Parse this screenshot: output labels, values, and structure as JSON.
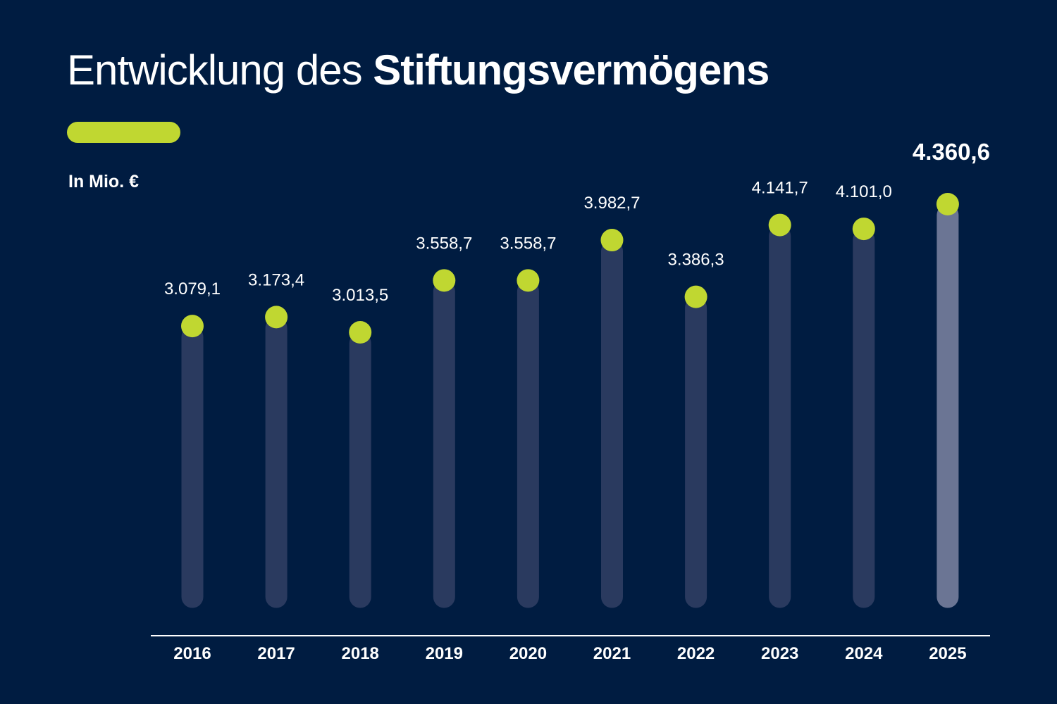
{
  "header": {
    "title_light": "Entwicklung des ",
    "title_bold": "Stiftungsvermögens",
    "unit": "In Mio. €"
  },
  "colors": {
    "background": "#001c41",
    "accent": "#c0d731",
    "bar": "#2a3a5f",
    "bar_highlight": "#6b7594",
    "axis": "#ffffff",
    "text": "#ffffff"
  },
  "chart_data": {
    "type": "bar",
    "categories": [
      "2016",
      "2017",
      "2018",
      "2019",
      "2020",
      "2021",
      "2022",
      "2023",
      "2024",
      "2025"
    ],
    "values": [
      3079.1,
      3173.4,
      3013.5,
      3558.7,
      3558.7,
      3982.7,
      3386.3,
      4141.7,
      4101.0,
      4360.6
    ],
    "data_labels": [
      "3.079,1",
      "3.173,4",
      "3.013,5",
      "3.558,7",
      "3.558,7",
      "3.982,7",
      "3.386,3",
      "4.141,7",
      "4.101,0",
      "4.360,6"
    ],
    "highlight_index": 9,
    "ylabel": "In Mio. €",
    "ylim": [
      0,
      4360.6
    ],
    "grid": false,
    "legend": "none"
  }
}
